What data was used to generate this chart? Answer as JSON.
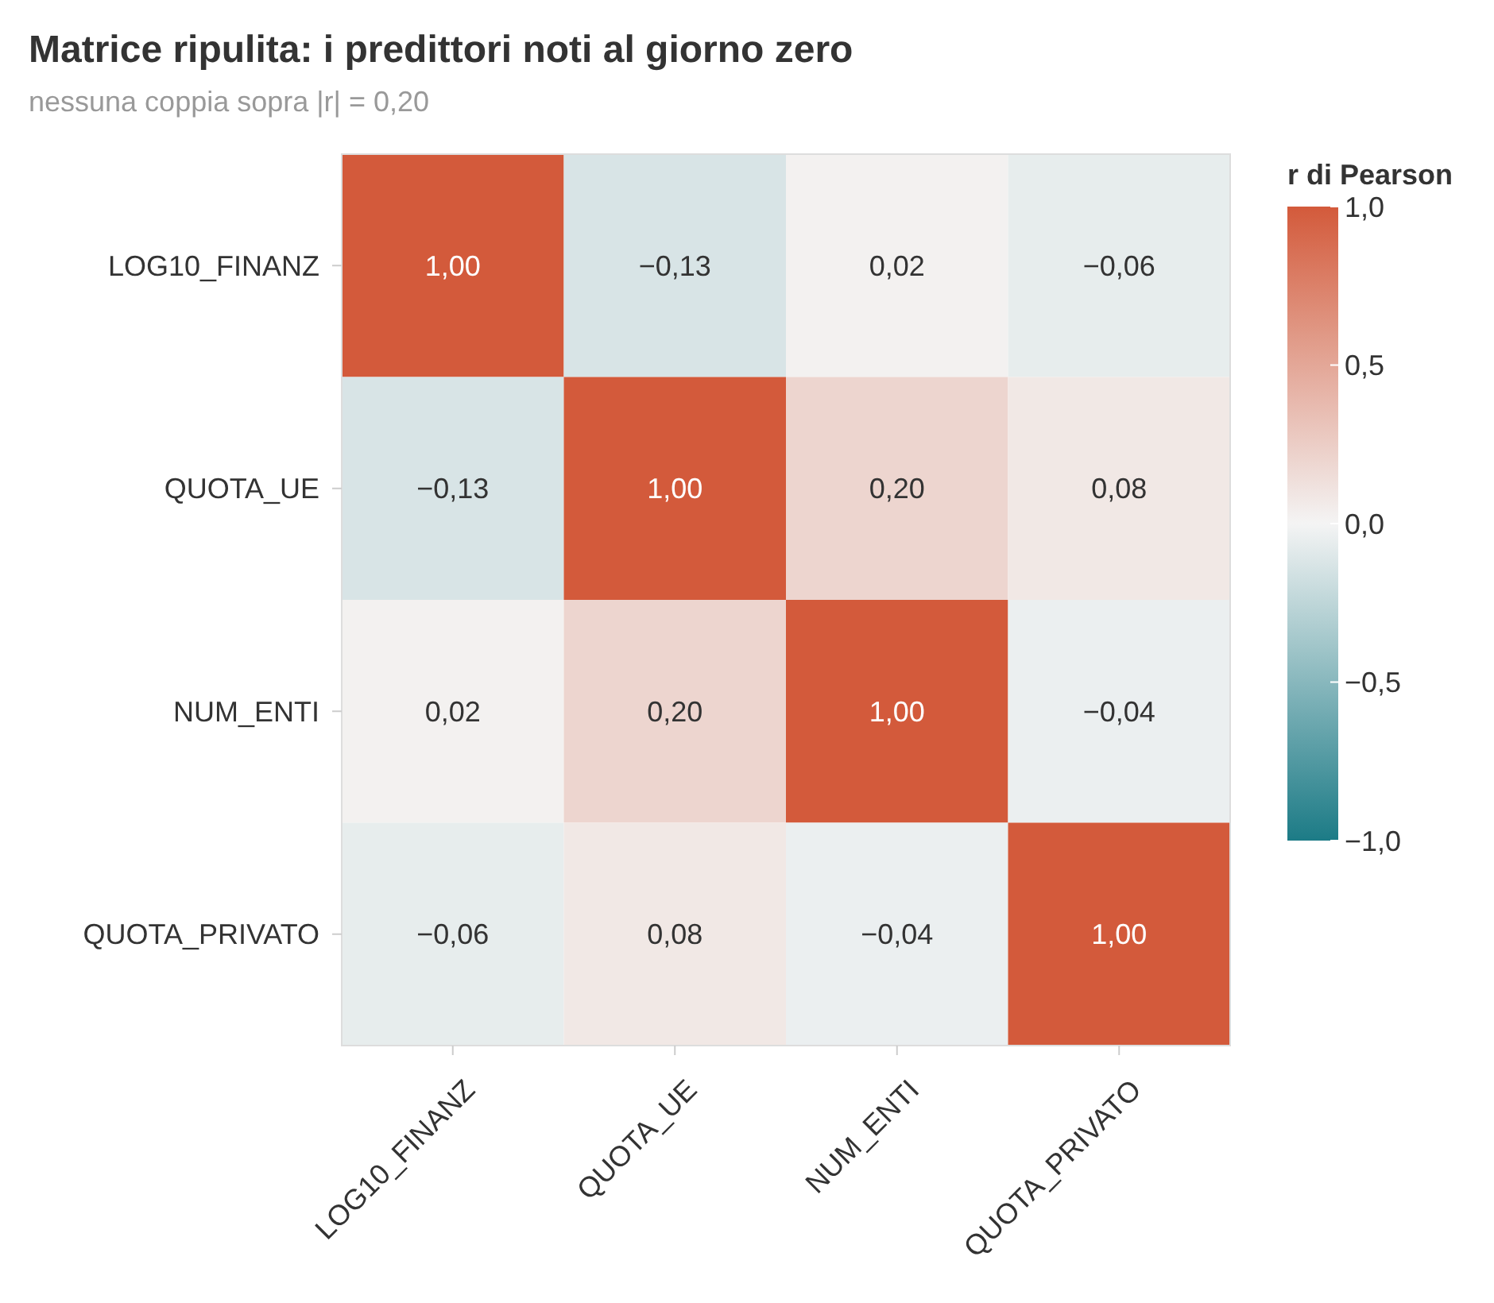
{
  "chart_data": {
    "type": "heatmap",
    "title": "Matrice ripulita: i predittori noti al giorno zero",
    "subtitle": "nessuna coppia sopra |r| = 0,20",
    "legend_title": "r di Pearson",
    "categories": [
      "LOG10_FINANZ",
      "QUOTA_UE",
      "NUM_ENTI",
      "QUOTA_PRIVATO"
    ],
    "y_categories": [
      "LOG10_FINANZ",
      "QUOTA_UE",
      "NUM_ENTI",
      "QUOTA_PRIVATO"
    ],
    "cells": [
      [
        1.0,
        -0.13,
        0.02,
        -0.06
      ],
      [
        -0.13,
        1.0,
        0.2,
        0.08
      ],
      [
        0.02,
        0.2,
        1.0,
        -0.04
      ],
      [
        -0.06,
        0.08,
        -0.04,
        1.0
      ]
    ],
    "cell_labels": [
      [
        "1,00",
        "−0,13",
        "0,02",
        "−0,06"
      ],
      [
        "−0,13",
        "1,00",
        "0,20",
        "0,08"
      ],
      [
        "0,02",
        "0,20",
        "1,00",
        "−0,04"
      ],
      [
        "−0,06",
        "0,08",
        "−0,04",
        "1,00"
      ]
    ],
    "clim": [
      -1,
      1
    ],
    "cticks": [
      {
        "value": -1,
        "label": "−1,0"
      },
      {
        "value": -0.5,
        "label": "−0,5"
      },
      {
        "value": 0,
        "label": "0,0"
      },
      {
        "value": 0.5,
        "label": "0,5"
      },
      {
        "value": 1,
        "label": "1,0"
      }
    ]
  }
}
